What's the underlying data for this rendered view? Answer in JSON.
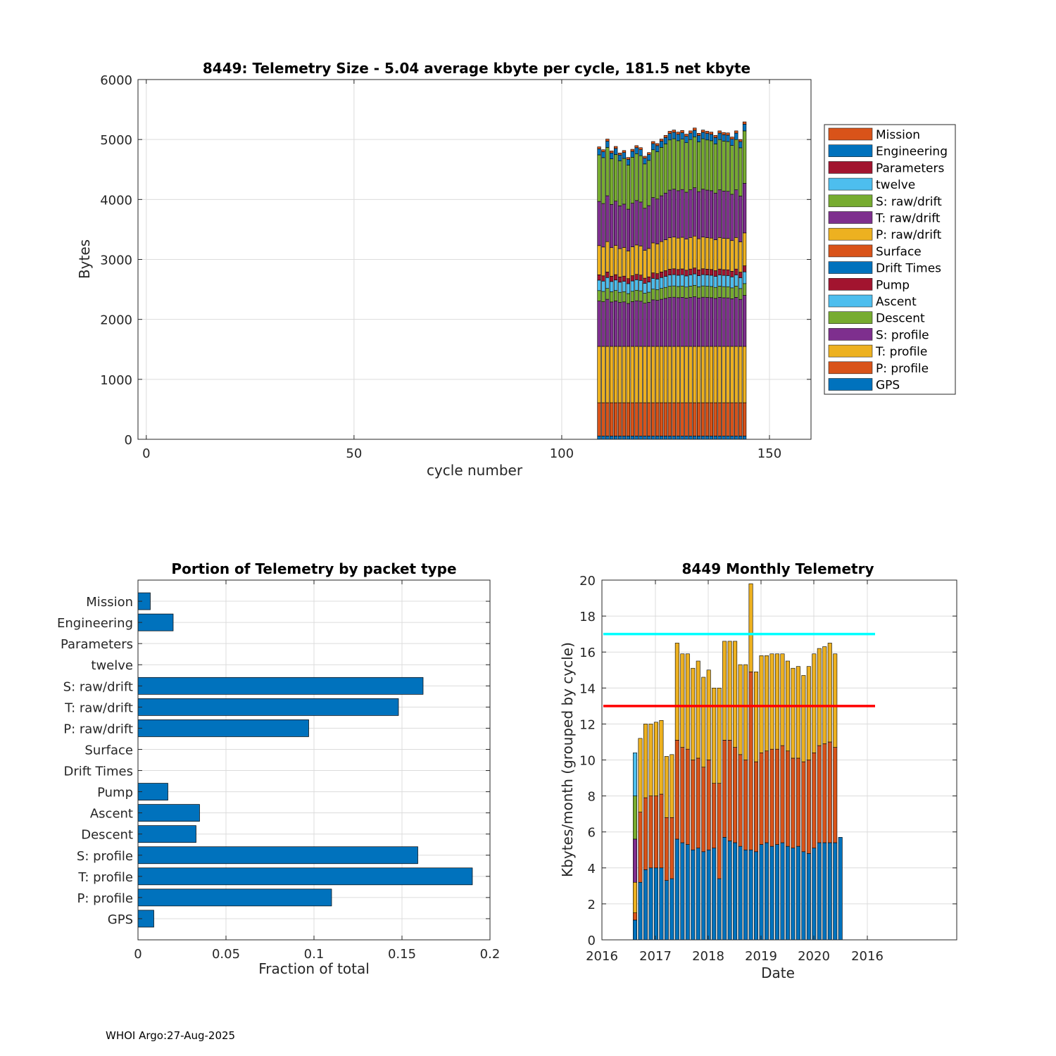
{
  "footer": "WHOI Argo:27-Aug-2025",
  "colors": {
    "blue": "#0072bd",
    "orange": "#d95319",
    "yellow": "#edb120",
    "purple": "#7e2f8e",
    "green": "#77ac30",
    "lightblue": "#4dbeee",
    "darkred": "#a2142f",
    "cyan": "#00ffff",
    "red": "#ff0000"
  },
  "chart_data": [
    {
      "id": "top",
      "type": "bar",
      "stacked": true,
      "title": "8449: Telemetry Size - 5.04 average kbyte per cycle,  181.5 net kbyte",
      "xlabel": "cycle number",
      "ylabel": "Bytes",
      "xlim": [
        -2,
        160
      ],
      "ylim": [
        0,
        6000
      ],
      "xticks": [
        0,
        50,
        100,
        150
      ],
      "yticks": [
        0,
        1000,
        2000,
        3000,
        4000,
        5000,
        6000
      ],
      "grid": true,
      "legend_position": "outside-right",
      "legend": [
        "Mission",
        "Engineering",
        "Parameters",
        "twelve",
        "S: raw/drift",
        "T: raw/drift",
        "P: raw/drift",
        "Surface",
        "Drift Times",
        "Pump",
        "Ascent",
        "Descent",
        "S: profile",
        "T: profile",
        "P: profile",
        "GPS"
      ],
      "legend_colors": [
        "#d95319",
        "#0072bd",
        "#a2142f",
        "#4dbeee",
        "#77ac30",
        "#7e2f8e",
        "#edb120",
        "#d95319",
        "#0072bd",
        "#a2142f",
        "#4dbeee",
        "#77ac30",
        "#7e2f8e",
        "#edb120",
        "#d95319",
        "#0072bd"
      ],
      "cycles": [
        109,
        110,
        111,
        112,
        113,
        114,
        115,
        116,
        117,
        118,
        119,
        120,
        121,
        122,
        123,
        124,
        125,
        126,
        127,
        128,
        129,
        130,
        131,
        132,
        133,
        134,
        135,
        136,
        137,
        138,
        139,
        140,
        141,
        142,
        143,
        144
      ],
      "totals": [
        4870,
        4800,
        5060,
        4770,
        4880,
        4720,
        4780,
        4610,
        4810,
        4900,
        4850,
        4640,
        4730,
        5000,
        4950,
        5060,
        5150,
        5250,
        5280,
        5230,
        5270,
        5180,
        5260,
        5330,
        5200,
        5280,
        5250,
        5230,
        5150,
        5260,
        5220,
        5210,
        5110,
        5260,
        5050,
        5480
      ],
      "series_order_bottom_up": [
        "GPS",
        "P: profile",
        "T: profile",
        "S: profile",
        "Descent",
        "Ascent",
        "Pump",
        "Drift Times",
        "Surface",
        "P: raw/drift",
        "T: raw/drift",
        "S: raw/drift",
        "twelve",
        "Parameters",
        "Engineering",
        "Mission"
      ],
      "series_typical_bytes": [
        55,
        555,
        940,
        760,
        175,
        175,
        90,
        0,
        0,
        490,
        740,
        780,
        0,
        0,
        100,
        35
      ]
    },
    {
      "id": "bottom_left",
      "type": "bar",
      "orientation": "horizontal",
      "title": "Portion of Telemetry by packet type",
      "xlabel": "Fraction of total",
      "ylabel": "",
      "xlim": [
        0,
        0.2
      ],
      "xticks": [
        0,
        0.05,
        0.1,
        0.15,
        0.2
      ],
      "xtick_labels": [
        "0",
        "0.05",
        "0.1",
        "0.15",
        "0.2"
      ],
      "grid": true,
      "categories": [
        "Mission",
        "Engineering",
        "Parameters",
        "twelve",
        "S: raw/drift",
        "T: raw/drift",
        "P: raw/drift",
        "Surface",
        "Drift Times",
        "Pump",
        "Ascent",
        "Descent",
        "S: profile",
        "T: profile",
        "P: profile",
        "GPS"
      ],
      "values": [
        0.007,
        0.02,
        0,
        0,
        0.162,
        0.148,
        0.097,
        0,
        0,
        0.017,
        0.035,
        0.033,
        0.159,
        0.19,
        0.11,
        0.009
      ]
    },
    {
      "id": "bottom_right",
      "type": "bar",
      "stacked": true,
      "title": "8449 Monthly Telemetry",
      "xlabel": "Date",
      "ylabel": "Kbytes/month (grouped by cycle)",
      "ylim": [
        0,
        20
      ],
      "yticks": [
        0,
        2,
        4,
        6,
        8,
        10,
        12,
        14,
        16,
        18,
        20
      ],
      "xtick_labels": [
        "2016",
        "2017",
        "2018",
        "2019",
        "2020",
        "2016"
      ],
      "grid": true,
      "hlines": [
        {
          "value": 17,
          "color": "#00ffff"
        },
        {
          "value": 13,
          "color": "#ff0000"
        }
      ],
      "months": [
        {
          "stack": [
            1.1,
            0.4,
            1.7,
            2.4,
            2.4,
            2.4
          ]
        },
        {
          "stack": [
            3.2,
            3.9,
            4.1
          ]
        },
        {
          "stack": [
            3.9,
            4.0,
            4.1
          ]
        },
        {
          "stack": [
            4.0,
            4.0,
            4.0
          ]
        },
        {
          "stack": [
            4.0,
            4.0,
            4.1
          ]
        },
        {
          "stack": [
            4.0,
            4.1,
            4.1
          ]
        },
        {
          "stack": [
            3.3,
            3.5,
            3.4
          ]
        },
        {
          "stack": [
            3.4,
            3.4,
            3.5
          ]
        },
        {
          "stack": [
            5.6,
            5.5,
            5.4
          ]
        },
        {
          "stack": [
            5.4,
            5.3,
            5.2
          ]
        },
        {
          "stack": [
            5.3,
            5.3,
            5.3
          ]
        },
        {
          "stack": [
            5.0,
            5.0,
            5.1
          ]
        },
        {
          "stack": [
            5.1,
            5.0,
            5.4
          ]
        },
        {
          "stack": [
            4.9,
            4.7,
            5.0
          ]
        },
        {
          "stack": [
            5.0,
            5.0,
            5.0
          ]
        },
        {
          "stack": [
            5.1,
            3.6,
            5.3
          ]
        },
        {
          "stack": [
            3.4,
            5.3,
            5.3
          ]
        },
        {
          "stack": [
            5.7,
            5.4,
            5.5
          ]
        },
        {
          "stack": [
            5.5,
            5.6,
            5.5
          ]
        },
        {
          "stack": [
            5.4,
            5.3,
            5.9
          ]
        },
        {
          "stack": [
            5.2,
            5.1,
            5.0
          ]
        },
        {
          "stack": [
            5.0,
            5.0,
            5.3
          ]
        },
        {
          "stack": [
            5.0,
            9.9,
            4.9,
            0.0
          ]
        },
        {
          "stack": [
            4.9,
            5.0,
            5.0
          ]
        },
        {
          "stack": [
            5.3,
            5.1,
            5.4
          ]
        },
        {
          "stack": [
            5.4,
            5.1,
            5.3
          ]
        },
        {
          "stack": [
            5.2,
            5.4,
            5.3
          ]
        },
        {
          "stack": [
            5.3,
            5.3,
            5.3
          ]
        },
        {
          "stack": [
            5.4,
            5.4,
            5.1
          ]
        },
        {
          "stack": [
            5.2,
            5.3,
            5.0
          ]
        },
        {
          "stack": [
            5.1,
            5.0,
            5.0
          ]
        },
        {
          "stack": [
            5.2,
            4.9,
            5.1
          ]
        },
        {
          "stack": [
            4.9,
            5.0,
            4.8
          ]
        },
        {
          "stack": [
            4.8,
            5.2,
            5.2
          ]
        },
        {
          "stack": [
            5.1,
            5.3,
            5.5
          ]
        },
        {
          "stack": [
            5.4,
            5.4,
            5.4
          ]
        },
        {
          "stack": [
            5.4,
            5.5,
            5.4
          ]
        },
        {
          "stack": [
            5.4,
            5.6,
            5.5
          ]
        },
        {
          "stack": [
            5.4,
            5.3,
            5.2
          ]
        },
        {
          "stack": [
            5.7
          ]
        }
      ]
    }
  ]
}
